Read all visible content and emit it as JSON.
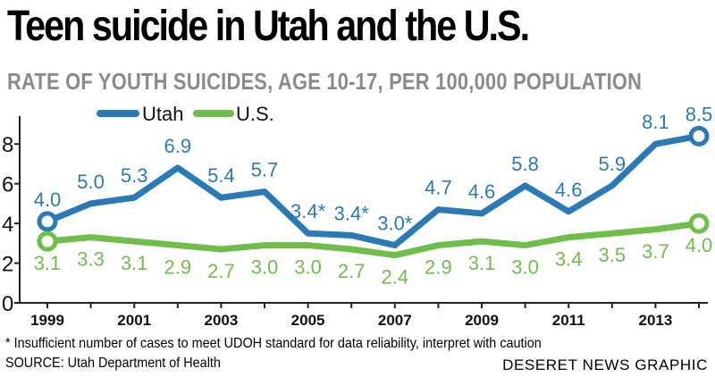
{
  "title": "Teen suicide in Utah and the U.S.",
  "subtitle": "RATE OF YOUTH SUICIDES, AGE 10-17, PER 100,000 POPULATION",
  "footnote": "* Insufficient number of cases to meet UDOH standard for data reliability, interpret with caution",
  "source": "SOURCE: Utah Department of Health",
  "credit": "DESERET NEWS GRAPHIC",
  "colors": {
    "utah": "#2a7ab8",
    "us": "#6ebe4a",
    "axis": "#222222"
  },
  "chart_data": {
    "type": "line",
    "x": [
      1999,
      2000,
      2001,
      2002,
      2003,
      2004,
      2005,
      2006,
      2007,
      2008,
      2009,
      2010,
      2011,
      2012,
      2013,
      2014
    ],
    "x_tick_labels": [
      "1999",
      "2001",
      "2003",
      "2005",
      "2007",
      "2009",
      "2011",
      "2013"
    ],
    "x_tick_values": [
      1999,
      2001,
      2003,
      2005,
      2007,
      2009,
      2011,
      2013
    ],
    "y_ticks": [
      0,
      2,
      4,
      6,
      8
    ],
    "ylim": [
      0,
      9.2
    ],
    "grid": false,
    "legend_position": "top-left",
    "series": [
      {
        "name": "Utah",
        "values": [
          4.0,
          5.0,
          5.3,
          6.9,
          5.4,
          5.7,
          3.4,
          3.4,
          3.0,
          4.7,
          4.6,
          5.8,
          4.6,
          5.9,
          8.1,
          8.5
        ],
        "plotted": [
          4.1,
          5.0,
          5.3,
          6.8,
          5.3,
          5.6,
          3.5,
          3.4,
          2.9,
          4.7,
          4.5,
          5.9,
          4.6,
          5.9,
          8.0,
          8.4
        ],
        "labels": [
          "4.0",
          "5.0",
          "5.3",
          "6.9",
          "5.4",
          "5.7",
          "3.4*",
          "3.4*",
          "3.0*",
          "4.7",
          "4.6",
          "5.8",
          "4.6",
          "5.9",
          "8.1",
          "8.5"
        ]
      },
      {
        "name": "U.S.",
        "values": [
          3.1,
          3.3,
          3.1,
          2.9,
          2.7,
          3.0,
          3.0,
          2.7,
          2.4,
          2.9,
          3.1,
          3.0,
          3.4,
          3.5,
          3.7,
          4.0
        ],
        "plotted": [
          3.1,
          3.3,
          3.1,
          2.9,
          2.7,
          2.9,
          2.9,
          2.7,
          2.4,
          2.9,
          3.1,
          2.9,
          3.3,
          3.5,
          3.7,
          4.0
        ],
        "labels": [
          "3.1",
          "3.3",
          "3.1",
          "2.9",
          "2.7",
          "3.0",
          "3.0",
          "2.7",
          "2.4",
          "2.9",
          "3.1",
          "3.0",
          "3.4",
          "3.5",
          "3.7",
          "4.0"
        ]
      }
    ]
  }
}
